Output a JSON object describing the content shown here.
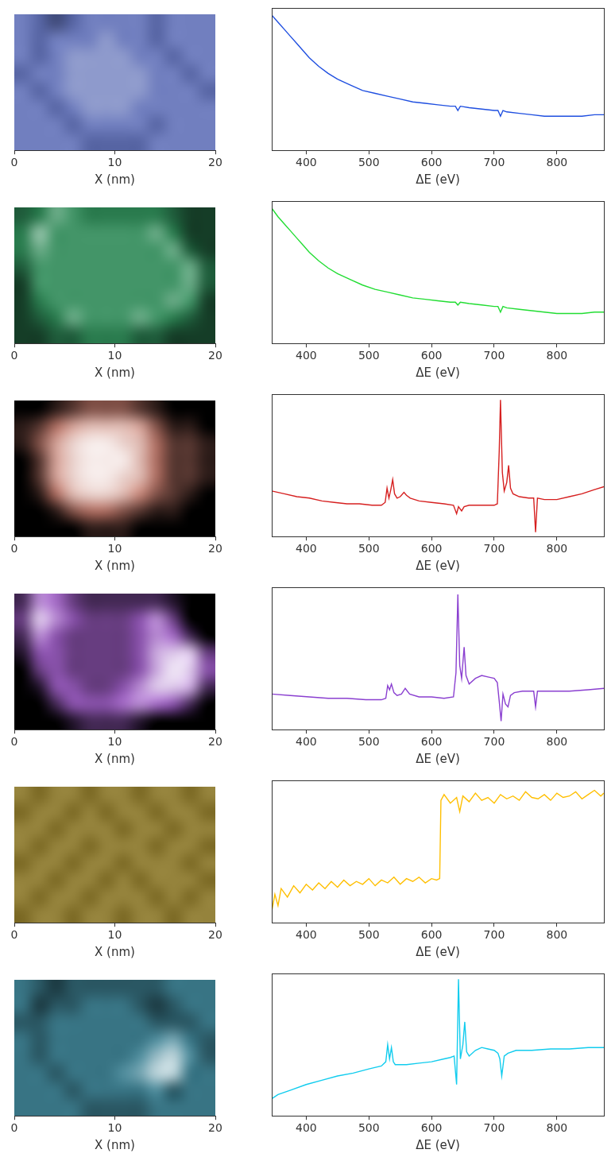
{
  "chart_data": [
    {
      "type": "heatmap",
      "x_label": "X (nm)",
      "xlim": [
        0,
        20
      ],
      "xticks": [
        0,
        10,
        20
      ],
      "ylim": [
        0,
        13.5
      ],
      "tick_labels": "x",
      "grid": false,
      "color": "#6272b8",
      "cell_range": [
        0,
        9
      ],
      "cells": [
        [
          5,
          4,
          3,
          4,
          5,
          5,
          5,
          5,
          4,
          5,
          5,
          5
        ],
        [
          5,
          4,
          5,
          5,
          5,
          6,
          5,
          5,
          4,
          5,
          5,
          5
        ],
        [
          5,
          4,
          5,
          6,
          6,
          6,
          6,
          5,
          5,
          4,
          5,
          5
        ],
        [
          4,
          5,
          5,
          6,
          6,
          6,
          6,
          6,
          5,
          5,
          4,
          5
        ],
        [
          5,
          4,
          5,
          6,
          6,
          6,
          6,
          6,
          5,
          5,
          5,
          4
        ],
        [
          5,
          5,
          4,
          5,
          6,
          6,
          6,
          5,
          5,
          5,
          5,
          5
        ],
        [
          5,
          5,
          5,
          4,
          5,
          5,
          5,
          5,
          4,
          5,
          5,
          5
        ],
        [
          5,
          5,
          5,
          5,
          4,
          4,
          4,
          4,
          5,
          5,
          5,
          5
        ]
      ]
    },
    {
      "type": "line",
      "x_label": "ΔE (eV)",
      "xlim": [
        345,
        875
      ],
      "xticks": [
        400,
        500,
        600,
        700,
        800
      ],
      "ylim": [
        0,
        100
      ],
      "tick_labels": "x",
      "grid": false,
      "color": "#1f4fe0",
      "x": [
        345,
        355,
        365,
        375,
        385,
        395,
        405,
        420,
        435,
        450,
        470,
        490,
        510,
        530,
        550,
        570,
        590,
        610,
        630,
        638,
        642,
        646,
        660,
        680,
        700,
        706,
        710,
        714,
        720,
        740,
        760,
        780,
        800,
        820,
        840,
        860,
        875
      ],
      "values": [
        95,
        90,
        85,
        80,
        75,
        70,
        65,
        59,
        54,
        50,
        46,
        42,
        40,
        38,
        36,
        34,
        33,
        32,
        31,
        31,
        28,
        31,
        30,
        29,
        28,
        28,
        24,
        28,
        27,
        26,
        25,
        24,
        24,
        24,
        24,
        25,
        25
      ]
    },
    {
      "type": "heatmap",
      "x_label": "X (nm)",
      "xlim": [
        0,
        20
      ],
      "xticks": [
        0,
        10,
        20
      ],
      "ylim": [
        0,
        13.5
      ],
      "tick_labels": "x",
      "grid": false,
      "color": "#2f8a58",
      "cell_range": [
        0,
        9
      ],
      "cells": [
        [
          3,
          4,
          6,
          5,
          4,
          4,
          4,
          4,
          4,
          3,
          2,
          2
        ],
        [
          4,
          7,
          5,
          5,
          5,
          5,
          5,
          5,
          6,
          4,
          2,
          2
        ],
        [
          4,
          6,
          5,
          5,
          5,
          5,
          5,
          5,
          5,
          6,
          3,
          2
        ],
        [
          3,
          5,
          5,
          5,
          5,
          5,
          5,
          5,
          5,
          5,
          6,
          3
        ],
        [
          2,
          5,
          5,
          5,
          5,
          5,
          5,
          5,
          5,
          5,
          6,
          3
        ],
        [
          2,
          4,
          5,
          5,
          5,
          5,
          5,
          5,
          5,
          6,
          5,
          2
        ],
        [
          2,
          3,
          4,
          6,
          5,
          5,
          5,
          6,
          5,
          4,
          3,
          2
        ],
        [
          2,
          2,
          3,
          3,
          4,
          4,
          4,
          3,
          3,
          2,
          2,
          2
        ]
      ]
    },
    {
      "type": "line",
      "x_label": "ΔE (eV)",
      "xlim": [
        345,
        875
      ],
      "xticks": [
        400,
        500,
        600,
        700,
        800
      ],
      "ylim": [
        0,
        100
      ],
      "tick_labels": "x",
      "grid": false,
      "color": "#22dd33",
      "x": [
        345,
        355,
        365,
        375,
        385,
        395,
        405,
        420,
        435,
        450,
        470,
        490,
        510,
        530,
        550,
        570,
        590,
        610,
        630,
        638,
        642,
        646,
        660,
        680,
        700,
        706,
        710,
        714,
        720,
        740,
        760,
        780,
        800,
        820,
        840,
        860,
        875
      ],
      "values": [
        95,
        89,
        84,
        79,
        74,
        69,
        64,
        58,
        53,
        49,
        45,
        41,
        38,
        36,
        34,
        32,
        31,
        30,
        29,
        29,
        27,
        29,
        28,
        27,
        26,
        26,
        22,
        26,
        25,
        24,
        23,
        22,
        21,
        21,
        21,
        22,
        22
      ]
    },
    {
      "type": "heatmap",
      "x_label": "X (nm)",
      "xlim": [
        0,
        20
      ],
      "xticks": [
        0,
        10,
        20
      ],
      "ylim": [
        0,
        13.5
      ],
      "tick_labels": "x",
      "grid": false,
      "color": "#c07a6c",
      "cell_range": [
        0,
        9
      ],
      "cells": [
        [
          0,
          0,
          1,
          2,
          3,
          3,
          3,
          2,
          1,
          0,
          0,
          0
        ],
        [
          1,
          2,
          4,
          6,
          7,
          7,
          7,
          6,
          3,
          1,
          1,
          0
        ],
        [
          1,
          3,
          6,
          8,
          9,
          9,
          8,
          7,
          4,
          2,
          2,
          1
        ],
        [
          0,
          2,
          6,
          8,
          9,
          9,
          9,
          7,
          4,
          2,
          2,
          1
        ],
        [
          0,
          2,
          6,
          8,
          9,
          9,
          8,
          7,
          4,
          2,
          2,
          1
        ],
        [
          0,
          1,
          4,
          7,
          8,
          8,
          7,
          5,
          3,
          2,
          1,
          0
        ],
        [
          0,
          0,
          1,
          3,
          4,
          4,
          3,
          2,
          1,
          1,
          0,
          0
        ],
        [
          0,
          0,
          0,
          0,
          1,
          1,
          1,
          0,
          0,
          0,
          0,
          0
        ]
      ]
    },
    {
      "type": "line",
      "x_label": "ΔE (eV)",
      "xlim": [
        345,
        875
      ],
      "xticks": [
        400,
        500,
        600,
        700,
        800
      ],
      "ylim": [
        0,
        100
      ],
      "tick_labels": "x",
      "grid": false,
      "color": "#d62020",
      "x": [
        345,
        365,
        385,
        405,
        425,
        445,
        465,
        485,
        505,
        520,
        526,
        529,
        532,
        535,
        538,
        541,
        545,
        550,
        556,
        560,
        566,
        580,
        600,
        620,
        635,
        640,
        643,
        648,
        652,
        660,
        680,
        700,
        705,
        708,
        710,
        713,
        716,
        720,
        723,
        726,
        730,
        740,
        755,
        763,
        766,
        769,
        780,
        800,
        820,
        840,
        860,
        875
      ],
      "values": [
        32,
        30,
        28,
        27,
        25,
        24,
        23,
        23,
        22,
        22,
        24,
        34,
        27,
        33,
        40,
        30,
        27,
        28,
        31,
        29,
        27,
        25,
        24,
        23,
        22,
        16,
        21,
        18,
        21,
        22,
        22,
        22,
        23,
        60,
        96,
        45,
        32,
        38,
        50,
        34,
        30,
        28,
        27,
        27,
        3,
        27,
        26,
        26,
        28,
        30,
        33,
        35
      ]
    },
    {
      "type": "heatmap",
      "x_label": "X (nm)",
      "xlim": [
        0,
        20
      ],
      "xticks": [
        0,
        10,
        20
      ],
      "ylim": [
        0,
        13.5
      ],
      "tick_labels": "x",
      "grid": false,
      "color": "#9a5cc0",
      "cell_range": [
        0,
        9
      ],
      "cells": [
        [
          2,
          6,
          5,
          3,
          2,
          2,
          2,
          2,
          2,
          1,
          0,
          0
        ],
        [
          3,
          8,
          6,
          4,
          3,
          3,
          3,
          4,
          6,
          3,
          0,
          0
        ],
        [
          2,
          6,
          4,
          3,
          3,
          3,
          3,
          4,
          6,
          5,
          2,
          0
        ],
        [
          1,
          4,
          4,
          3,
          3,
          3,
          3,
          4,
          7,
          8,
          8,
          3
        ],
        [
          0,
          3,
          4,
          3,
          3,
          3,
          3,
          4,
          7,
          9,
          8,
          4
        ],
        [
          0,
          1,
          4,
          4,
          3,
          3,
          4,
          6,
          8,
          8,
          7,
          2
        ],
        [
          0,
          0,
          2,
          4,
          4,
          4,
          5,
          6,
          5,
          4,
          2,
          0
        ],
        [
          0,
          0,
          0,
          1,
          2,
          2,
          2,
          1,
          0,
          0,
          0,
          0
        ]
      ]
    },
    {
      "type": "line",
      "x_label": "ΔE (eV)",
      "xlim": [
        345,
        875
      ],
      "xticks": [
        400,
        500,
        600,
        700,
        800
      ],
      "ylim": [
        0,
        100
      ],
      "tick_labels": "x",
      "grid": false,
      "color": "#8a3fd0",
      "x": [
        345,
        375,
        405,
        435,
        465,
        495,
        520,
        527,
        530,
        533,
        536,
        540,
        545,
        552,
        558,
        565,
        580,
        600,
        620,
        635,
        639,
        642,
        645,
        648,
        652,
        655,
        660,
        670,
        680,
        690,
        700,
        705,
        708,
        711,
        714,
        718,
        722,
        726,
        732,
        745,
        760,
        763,
        766,
        769,
        790,
        820,
        850,
        875
      ],
      "values": [
        25,
        24,
        23,
        22,
        22,
        21,
        21,
        22,
        31,
        28,
        32,
        26,
        24,
        25,
        29,
        25,
        23,
        23,
        22,
        23,
        40,
        95,
        45,
        36,
        58,
        38,
        32,
        36,
        38,
        37,
        36,
        33,
        20,
        6,
        25,
        18,
        16,
        24,
        26,
        27,
        27,
        27,
        16,
        27,
        27,
        27,
        28,
        29
      ]
    },
    {
      "type": "heatmap",
      "x_label": "X (nm)",
      "xlim": [
        0,
        20
      ],
      "xticks": [
        0,
        10,
        20
      ],
      "ylim": [
        0,
        13.5
      ],
      "tick_labels": "x",
      "grid": false,
      "color": "#8a7628",
      "cell_range": [
        0,
        9
      ],
      "cells": [
        [
          5,
          4,
          5,
          5,
          4,
          5,
          5,
          4,
          5,
          5,
          4,
          5
        ],
        [
          4,
          5,
          5,
          4,
          5,
          4,
          5,
          5,
          4,
          5,
          5,
          4
        ],
        [
          5,
          5,
          4,
          5,
          5,
          5,
          4,
          5,
          5,
          4,
          5,
          5
        ],
        [
          5,
          4,
          5,
          5,
          4,
          5,
          5,
          5,
          4,
          5,
          5,
          4
        ],
        [
          4,
          5,
          5,
          4,
          5,
          5,
          4,
          5,
          5,
          5,
          4,
          5
        ],
        [
          5,
          5,
          4,
          5,
          5,
          4,
          5,
          4,
          5,
          5,
          5,
          4
        ],
        [
          5,
          4,
          5,
          5,
          4,
          5,
          5,
          5,
          4,
          5,
          4,
          5
        ],
        [
          4,
          5,
          5,
          4,
          5,
          5,
          4,
          5,
          5,
          4,
          5,
          5
        ]
      ]
    },
    {
      "type": "line",
      "x_label": "ΔE (eV)",
      "xlim": [
        345,
        875
      ],
      "xticks": [
        400,
        500,
        600,
        700,
        800
      ],
      "ylim": [
        0,
        100
      ],
      "tick_labels": "x",
      "grid": false,
      "color": "#ffbf00",
      "x": [
        345,
        350,
        355,
        360,
        370,
        380,
        390,
        400,
        410,
        420,
        430,
        440,
        450,
        460,
        470,
        480,
        490,
        500,
        510,
        520,
        530,
        540,
        550,
        560,
        570,
        580,
        590,
        600,
        608,
        613,
        615,
        620,
        630,
        640,
        645,
        650,
        660,
        670,
        680,
        690,
        700,
        710,
        720,
        730,
        740,
        750,
        760,
        770,
        780,
        790,
        800,
        810,
        820,
        830,
        840,
        850,
        860,
        870,
        875
      ],
      "values": [
        8,
        20,
        12,
        24,
        18,
        26,
        21,
        27,
        23,
        28,
        24,
        29,
        25,
        30,
        26,
        29,
        27,
        31,
        26,
        30,
        28,
        32,
        27,
        31,
        29,
        32,
        28,
        31,
        30,
        31,
        86,
        90,
        84,
        88,
        78,
        89,
        85,
        91,
        86,
        88,
        84,
        90,
        87,
        89,
        86,
        92,
        88,
        87,
        90,
        86,
        91,
        88,
        89,
        92,
        87,
        90,
        93,
        89,
        91
      ]
    },
    {
      "type": "heatmap",
      "x_label": "X (nm)",
      "xlim": [
        0,
        20
      ],
      "xticks": [
        0,
        10,
        20
      ],
      "ylim": [
        0,
        13.5
      ],
      "tick_labels": "x",
      "grid": false,
      "color": "#3f8294",
      "cell_range": [
        0,
        9
      ],
      "cells": [
        [
          4,
          3,
          2,
          3,
          3,
          3,
          3,
          3,
          3,
          4,
          4,
          4
        ],
        [
          4,
          2,
          3,
          3,
          4,
          4,
          4,
          3,
          2,
          3,
          4,
          4
        ],
        [
          3,
          3,
          4,
          4,
          4,
          4,
          4,
          4,
          3,
          3,
          3,
          4
        ],
        [
          4,
          3,
          4,
          4,
          4,
          4,
          4,
          4,
          5,
          6,
          4,
          3
        ],
        [
          4,
          3,
          4,
          4,
          4,
          4,
          4,
          5,
          7,
          8,
          5,
          3
        ],
        [
          4,
          4,
          3,
          4,
          4,
          4,
          5,
          6,
          8,
          8,
          4,
          4
        ],
        [
          4,
          4,
          4,
          3,
          4,
          4,
          4,
          4,
          5,
          3,
          4,
          4
        ],
        [
          4,
          4,
          4,
          4,
          3,
          3,
          3,
          3,
          4,
          4,
          4,
          4
        ]
      ]
    },
    {
      "type": "line",
      "x_label": "ΔE (eV)",
      "xlim": [
        345,
        875
      ],
      "xticks": [
        400,
        500,
        600,
        700,
        800
      ],
      "ylim": [
        0,
        100
      ],
      "tick_labels": "x",
      "grid": false,
      "color": "#11ccee",
      "x": [
        345,
        355,
        375,
        400,
        425,
        450,
        475,
        500,
        520,
        527,
        530,
        533,
        536,
        539,
        542,
        548,
        560,
        580,
        600,
        620,
        630,
        636,
        640,
        643,
        646,
        650,
        653,
        656,
        660,
        670,
        680,
        690,
        700,
        706,
        709,
        712,
        716,
        722,
        735,
        760,
        790,
        820,
        850,
        875
      ],
      "values": [
        12,
        15,
        18,
        22,
        25,
        28,
        30,
        33,
        35,
        38,
        50,
        40,
        48,
        38,
        36,
        36,
        36,
        37,
        38,
        40,
        41,
        42,
        22,
        96,
        40,
        50,
        66,
        45,
        42,
        46,
        48,
        47,
        46,
        44,
        40,
        28,
        42,
        44,
        46,
        46,
        47,
        47,
        48,
        48
      ]
    }
  ]
}
